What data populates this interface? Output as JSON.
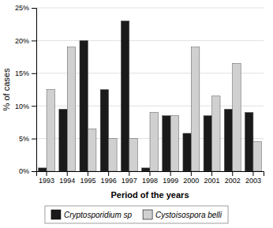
{
  "chart_data": {
    "type": "bar",
    "xlabel": "Period of the years",
    "ylabel": "% of cases",
    "categories": [
      "1993",
      "1994",
      "1995",
      "1996",
      "1997",
      "1998",
      "1999",
      "2000",
      "2001",
      "2002",
      "2003"
    ],
    "series": [
      {
        "name": "Cryptosporidium sp",
        "color": "#1a1a1a",
        "values": [
          0.5,
          9.5,
          20,
          12.5,
          23,
          0.5,
          8.5,
          5.8,
          8.5,
          9.5,
          9.0
        ]
      },
      {
        "name": "Cystoisospora belli",
        "color": "#d0d0d0",
        "values": [
          12.5,
          19,
          6.5,
          5.0,
          5.0,
          9.0,
          8.5,
          19,
          11.5,
          16.5,
          4.5
        ]
      }
    ],
    "ylim": [
      0,
      25
    ],
    "yticks": [
      {
        "value": 0,
        "label": "0%"
      },
      {
        "value": 5,
        "label": "5%"
      },
      {
        "value": 10,
        "label": "10%"
      },
      {
        "value": 15,
        "label": "15%"
      },
      {
        "value": 20,
        "label": "20%"
      },
      {
        "value": 25,
        "label": "25%"
      }
    ],
    "grid": true,
    "legend": "bottom"
  }
}
